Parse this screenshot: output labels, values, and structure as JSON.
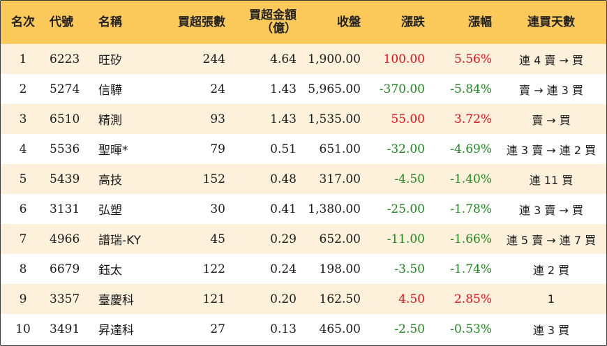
{
  "headers": {
    "rank": "名次",
    "code": "代號",
    "name": "名稱",
    "net_lots": "買超張數",
    "net_amount_line1": "買超金額",
    "net_amount_line2": "（億）",
    "close": "收盤",
    "change": "漲跌",
    "pct": "漲幅",
    "streak": "連買天數"
  },
  "colors": {
    "header_bg": "#fbc95a",
    "row_alt_bg": "#fdf1dc",
    "up": "#e8101c",
    "down": "#1f8b1f"
  },
  "rows": [
    {
      "rank": "1",
      "code": "6223",
      "name": "旺矽",
      "net_lots": "244",
      "net_amount": "4.64",
      "close": "1,900.00",
      "change": "100.00",
      "pct": "5.56%",
      "streak": "連 4 賣 → 買",
      "dir": "up"
    },
    {
      "rank": "2",
      "code": "5274",
      "name": "信驊",
      "net_lots": "24",
      "net_amount": "1.43",
      "close": "5,965.00",
      "change": "-370.00",
      "pct": "-5.84%",
      "streak": "賣 → 連 3 買",
      "dir": "down"
    },
    {
      "rank": "3",
      "code": "6510",
      "name": "精測",
      "net_lots": "93",
      "net_amount": "1.43",
      "close": "1,535.00",
      "change": "55.00",
      "pct": "3.72%",
      "streak": "賣 → 買",
      "dir": "up"
    },
    {
      "rank": "4",
      "code": "5536",
      "name": "聖暉*",
      "net_lots": "79",
      "net_amount": "0.51",
      "close": "651.00",
      "change": "-32.00",
      "pct": "-4.69%",
      "streak": "連 3 賣 → 連 2 買",
      "dir": "down"
    },
    {
      "rank": "5",
      "code": "5439",
      "name": "高技",
      "net_lots": "152",
      "net_amount": "0.48",
      "close": "317.00",
      "change": "-4.50",
      "pct": "-1.40%",
      "streak": "連 11 買",
      "dir": "down"
    },
    {
      "rank": "6",
      "code": "3131",
      "name": "弘塑",
      "net_lots": "30",
      "net_amount": "0.41",
      "close": "1,380.00",
      "change": "-25.00",
      "pct": "-1.78%",
      "streak": "連 3 賣 → 買",
      "dir": "down"
    },
    {
      "rank": "7",
      "code": "4966",
      "name": "譜瑞-KY",
      "net_lots": "45",
      "net_amount": "0.29",
      "close": "652.00",
      "change": "-11.00",
      "pct": "-1.66%",
      "streak": "連 5 賣 → 連 7 買",
      "dir": "down"
    },
    {
      "rank": "8",
      "code": "6679",
      "name": "鈺太",
      "net_lots": "122",
      "net_amount": "0.24",
      "close": "198.00",
      "change": "-3.50",
      "pct": "-1.74%",
      "streak": "連 2 買",
      "dir": "down"
    },
    {
      "rank": "9",
      "code": "3357",
      "name": "臺慶科",
      "net_lots": "121",
      "net_amount": "0.20",
      "close": "162.50",
      "change": "4.50",
      "pct": "2.85%",
      "streak": "1",
      "dir": "up"
    },
    {
      "rank": "10",
      "code": "3491",
      "name": "昇達科",
      "net_lots": "27",
      "net_amount": "0.13",
      "close": "465.00",
      "change": "-2.50",
      "pct": "-0.53%",
      "streak": "連 3 買",
      "dir": "down"
    }
  ]
}
